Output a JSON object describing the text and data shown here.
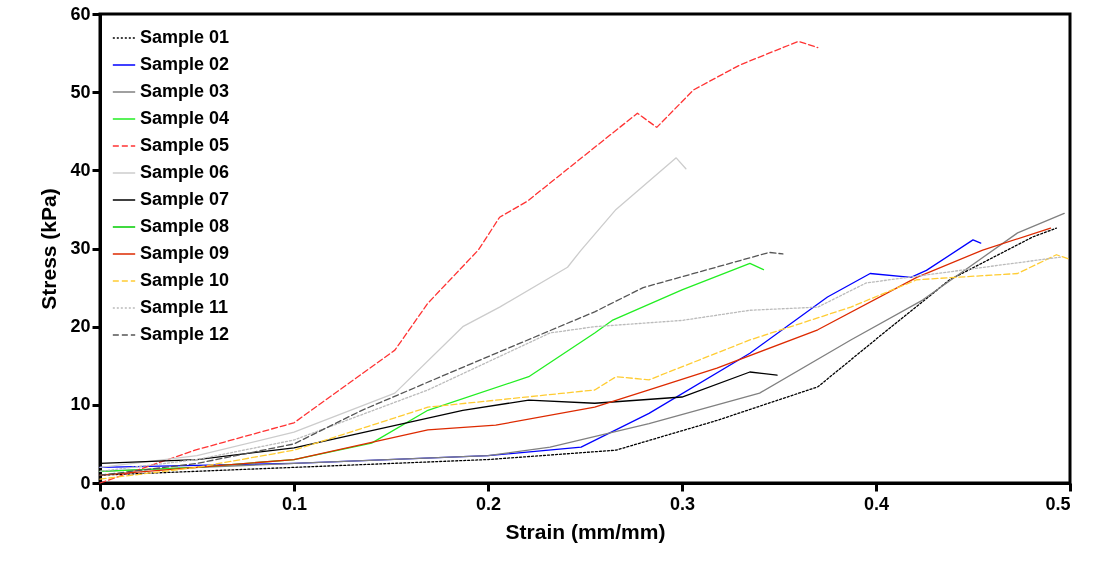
{
  "chart_data": {
    "type": "line",
    "xlabel": "Strain (mm/mm)",
    "ylabel": "Stress (kPa)",
    "xlim": [
      0,
      0.5
    ],
    "xticks": [
      {
        "value": 0,
        "label": "0.0"
      },
      0.1,
      0.2,
      0.3,
      0.4,
      0.5
    ],
    "ylim": [
      0,
      60
    ],
    "yticks": [
      0,
      10,
      20,
      30,
      40,
      50,
      60
    ],
    "grid": false,
    "legend": "top left",
    "marker": "none",
    "series": [
      {
        "name": "Sample 01",
        "color": "#000000",
        "line_style": "dotted",
        "x": [
          0,
          0.1,
          0.2,
          0.266,
          0.318,
          0.37,
          0.404,
          0.438,
          0.481,
          0.493
        ],
        "values": [
          1,
          2,
          3,
          4.2,
          8,
          12.3,
          19.2,
          26,
          31.5,
          32.6
        ]
      },
      {
        "name": "Sample 02",
        "color": "#0000ff",
        "line_style": "solid",
        "x": [
          0,
          0.1,
          0.2,
          0.248,
          0.283,
          0.335,
          0.375,
          0.397,
          0.418,
          0.426,
          0.45,
          0.454
        ],
        "values": [
          2,
          2.5,
          3.5,
          4.6,
          8.9,
          16.6,
          23.8,
          26.8,
          26.3,
          27.2,
          31.1,
          30.7
        ]
      },
      {
        "name": "Sample 03",
        "color": "#808080",
        "line_style": "solid",
        "x": [
          0,
          0.1,
          0.2,
          0.232,
          0.283,
          0.34,
          0.387,
          0.424,
          0.473,
          0.497
        ],
        "values": [
          1.5,
          2.5,
          3.5,
          4.6,
          7.6,
          11.5,
          18.3,
          23.4,
          32,
          34.5
        ]
      },
      {
        "name": "Sample 04",
        "color": "#22ee22",
        "line_style": "solid",
        "x": [
          0,
          0.05,
          0.1,
          0.14,
          0.169,
          0.221,
          0.255,
          0.264,
          0.3,
          0.335,
          0.342
        ],
        "values": [
          1.5,
          2,
          3,
          5.1,
          9.3,
          13.6,
          19.2,
          20.8,
          24.7,
          28.1,
          27.3
        ]
      },
      {
        "name": "Sample 05",
        "color": "#ff3333",
        "line_style": "dashed",
        "x": [
          0,
          0.049,
          0.1,
          0.152,
          0.169,
          0.195,
          0.206,
          0.22,
          0.277,
          0.287,
          0.306,
          0.33,
          0.36,
          0.37
        ],
        "values": [
          0,
          4.2,
          7.7,
          17,
          23,
          29.8,
          34,
          36,
          47.3,
          45.5,
          50.3,
          53.5,
          56.5,
          55.7
        ]
      },
      {
        "name": "Sample 06",
        "color": "#cccccc",
        "line_style": "solid",
        "x": [
          0,
          0.05,
          0.1,
          0.152,
          0.187,
          0.206,
          0.241,
          0.248,
          0.266,
          0.297,
          0.302
        ],
        "values": [
          2,
          3.5,
          6.5,
          11.5,
          20,
          22.5,
          27.6,
          29.8,
          35,
          41.6,
          40.2
        ]
      },
      {
        "name": "Sample 07",
        "color": "#000000",
        "line_style": "solid",
        "x": [
          0,
          0.05,
          0.1,
          0.187,
          0.221,
          0.255,
          0.3,
          0.335,
          0.349
        ],
        "values": [
          2.5,
          3,
          4.5,
          9.3,
          10.6,
          10.2,
          11,
          14.2,
          13.8
        ]
      },
      {
        "name": "Sample 08",
        "color": "#00cc00",
        "line_style": "solid"
      },
      {
        "name": "Sample 09",
        "color": "#dd2a00",
        "line_style": "solid",
        "x": [
          0,
          0.1,
          0.169,
          0.204,
          0.255,
          0.283,
          0.318,
          0.37,
          0.421,
          0.455,
          0.49
        ],
        "values": [
          1,
          3,
          6.8,
          7.4,
          9.7,
          11.9,
          14.7,
          19.6,
          26.3,
          29.8,
          32.6
        ]
      },
      {
        "name": "Sample 10",
        "color": "#ffcc33",
        "line_style": "dashed",
        "x": [
          0,
          0.05,
          0.1,
          0.169,
          0.255,
          0.266,
          0.283,
          0.335,
          0.387,
          0.421,
          0.473,
          0.493,
          0.5
        ],
        "values": [
          0.5,
          2,
          4.2,
          9.7,
          11.9,
          13.6,
          13.2,
          18.3,
          22.5,
          26,
          26.8,
          29.2,
          28.6
        ]
      },
      {
        "name": "Sample 11",
        "color": "#bbbbbb",
        "line_style": "dotted",
        "x": [
          0,
          0.05,
          0.1,
          0.169,
          0.232,
          0.255,
          0.3,
          0.335,
          0.37,
          0.395,
          0.495
        ],
        "values": [
          1.5,
          3,
          5.5,
          11.9,
          19.2,
          20,
          20.8,
          22.1,
          22.5,
          25.6,
          28.9
        ]
      },
      {
        "name": "Sample 12",
        "color": "#555555",
        "line_style": "dashed",
        "x": [
          0,
          0.05,
          0.1,
          0.135,
          0.187,
          0.255,
          0.28,
          0.345,
          0.352
        ],
        "values": [
          1,
          2.5,
          5,
          9.3,
          14.8,
          21.9,
          25,
          29.5,
          29.3
        ]
      }
    ]
  }
}
